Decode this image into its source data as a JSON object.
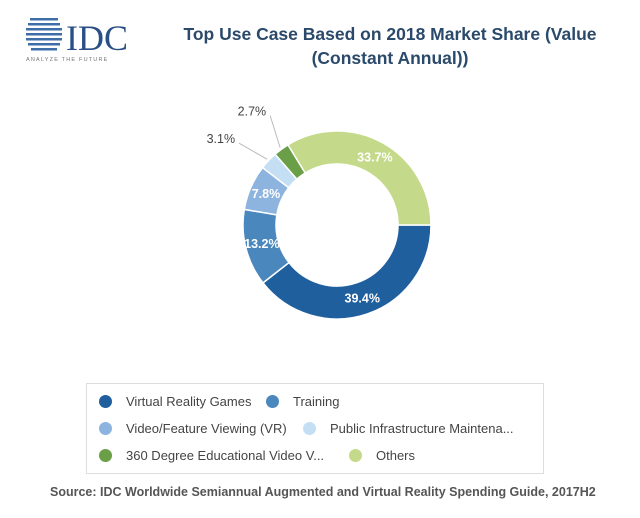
{
  "logo": {
    "text": "IDC",
    "tagline": "ANALYZE THE FUTURE"
  },
  "chart_data": {
    "type": "pie",
    "donut": true,
    "title": "Top Use Case Based on 2018 Market Share (Value (Constant Annual))",
    "title_lines": [
      "Top Use Case Based on 2018 Market Share (Value",
      "(Constant Annual))"
    ],
    "categories": [
      "Virtual Reality Games",
      "Training",
      "Video/Feature Viewing (VR)",
      "Public Infrastructure Maintena...",
      "360 Degree Educational Video V...",
      "Others"
    ],
    "values": [
      39.4,
      13.2,
      7.8,
      3.1,
      2.7,
      33.7
    ],
    "labels": [
      "39.4%",
      "13.2%",
      "7.8%",
      "3.1%",
      "2.7%",
      "33.7%"
    ],
    "colors": [
      "#1f5f9e",
      "#4a87bd",
      "#8db4de",
      "#c4dff3",
      "#6a9e47",
      "#c4da8a"
    ],
    "legend_position": "bottom"
  },
  "source": "Source: IDC Worldwide Semiannual Augmented and Virtual Reality Spending Guide, 2017H2"
}
